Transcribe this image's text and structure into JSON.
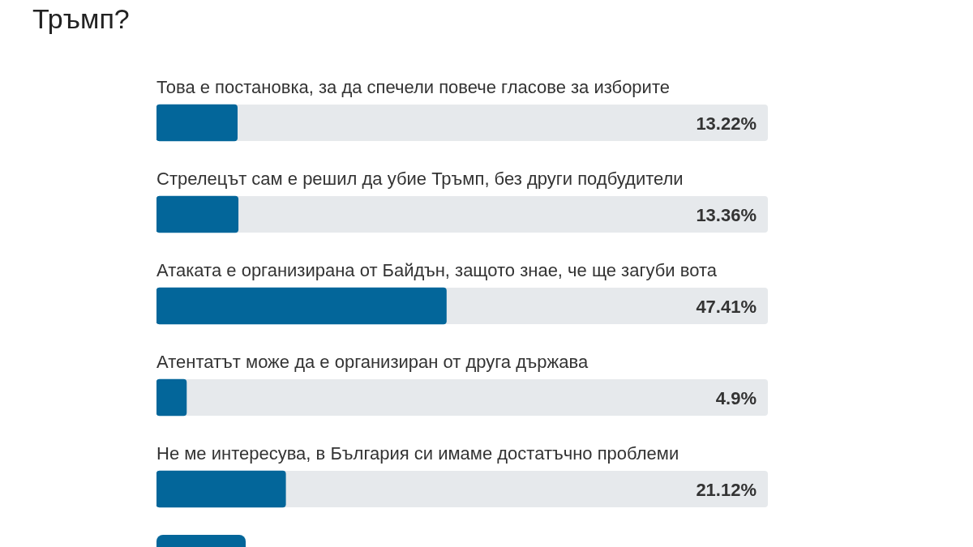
{
  "chart_data": {
    "type": "bar",
    "orientation": "horizontal",
    "title": "Тръмп?",
    "categories": [
      "Това е постановка, за да спечели повече гласове за изборите",
      "Стрелецът сам е решил да убие Тръмп, без други подбудители",
      "Атаката е организирана от Байдън, защото знае, че ще загуби вота",
      "Атентатът може да е организиран от друга държава",
      "Не ме интересува, в България си имаме достатъчно проблеми"
    ],
    "values": [
      13.22,
      13.36,
      47.41,
      4.9,
      21.12
    ],
    "value_labels": [
      "13.22%",
      "13.36%",
      "47.41%",
      "4.9%",
      "21.12%"
    ],
    "color": "#03669a",
    "xlim": [
      0,
      100
    ],
    "legend": false
  }
}
